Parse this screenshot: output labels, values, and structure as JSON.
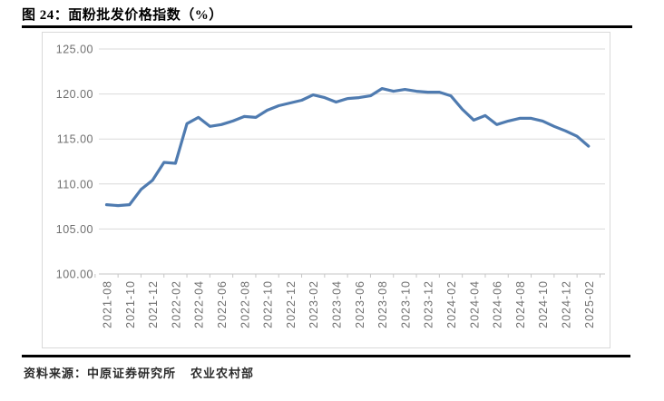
{
  "figure": {
    "title": "图 24：面粉批发价格指数（%）",
    "source": {
      "label": "资料来源：",
      "org1": "中原证券研究所",
      "org2": "农业农村部"
    }
  },
  "chart_data": {
    "type": "line",
    "title": "面粉批发价格指数（%）",
    "x": [
      "2021-08",
      "2021-09",
      "2021-10",
      "2021-11",
      "2021-12",
      "2022-01",
      "2022-02",
      "2022-03",
      "2022-04",
      "2022-05",
      "2022-06",
      "2022-07",
      "2022-08",
      "2022-09",
      "2022-10",
      "2022-11",
      "2022-12",
      "2023-01",
      "2023-02",
      "2023-03",
      "2023-04",
      "2023-05",
      "2023-06",
      "2023-07",
      "2023-08",
      "2023-09",
      "2023-10",
      "2023-11",
      "2023-12",
      "2024-01",
      "2024-02",
      "2024-03",
      "2024-04",
      "2024-05",
      "2024-06",
      "2024-07",
      "2024-08",
      "2024-09",
      "2024-10",
      "2024-11",
      "2024-12",
      "2025-01",
      "2025-02"
    ],
    "series": [
      {
        "name": "面粉批发价格指数",
        "values": [
          107.7,
          107.6,
          107.7,
          109.4,
          110.4,
          112.4,
          112.3,
          116.7,
          117.4,
          116.4,
          116.6,
          117.0,
          117.5,
          117.4,
          118.2,
          118.7,
          119.0,
          119.3,
          119.9,
          119.6,
          119.1,
          119.5,
          119.6,
          119.8,
          120.6,
          120.3,
          120.5,
          120.3,
          120.2,
          120.2,
          119.8,
          118.3,
          117.1,
          117.6,
          116.6,
          117.0,
          117.3,
          117.3,
          117.0,
          116.4,
          115.9,
          115.3,
          114.2
        ]
      }
    ],
    "xlabel": "",
    "ylabel": "",
    "ylim": [
      100,
      125
    ],
    "y_ticks": [
      125,
      120,
      115,
      110,
      105,
      100
    ],
    "y_tick_decimals": 2,
    "x_label_every": 2,
    "grid": "horizontal",
    "legend": "none",
    "colors": {
      "line": "#4f7bb0",
      "grid": "#d9d9d9",
      "axis": "#c6c6c6",
      "tick_text": "#6f6f6f"
    }
  }
}
